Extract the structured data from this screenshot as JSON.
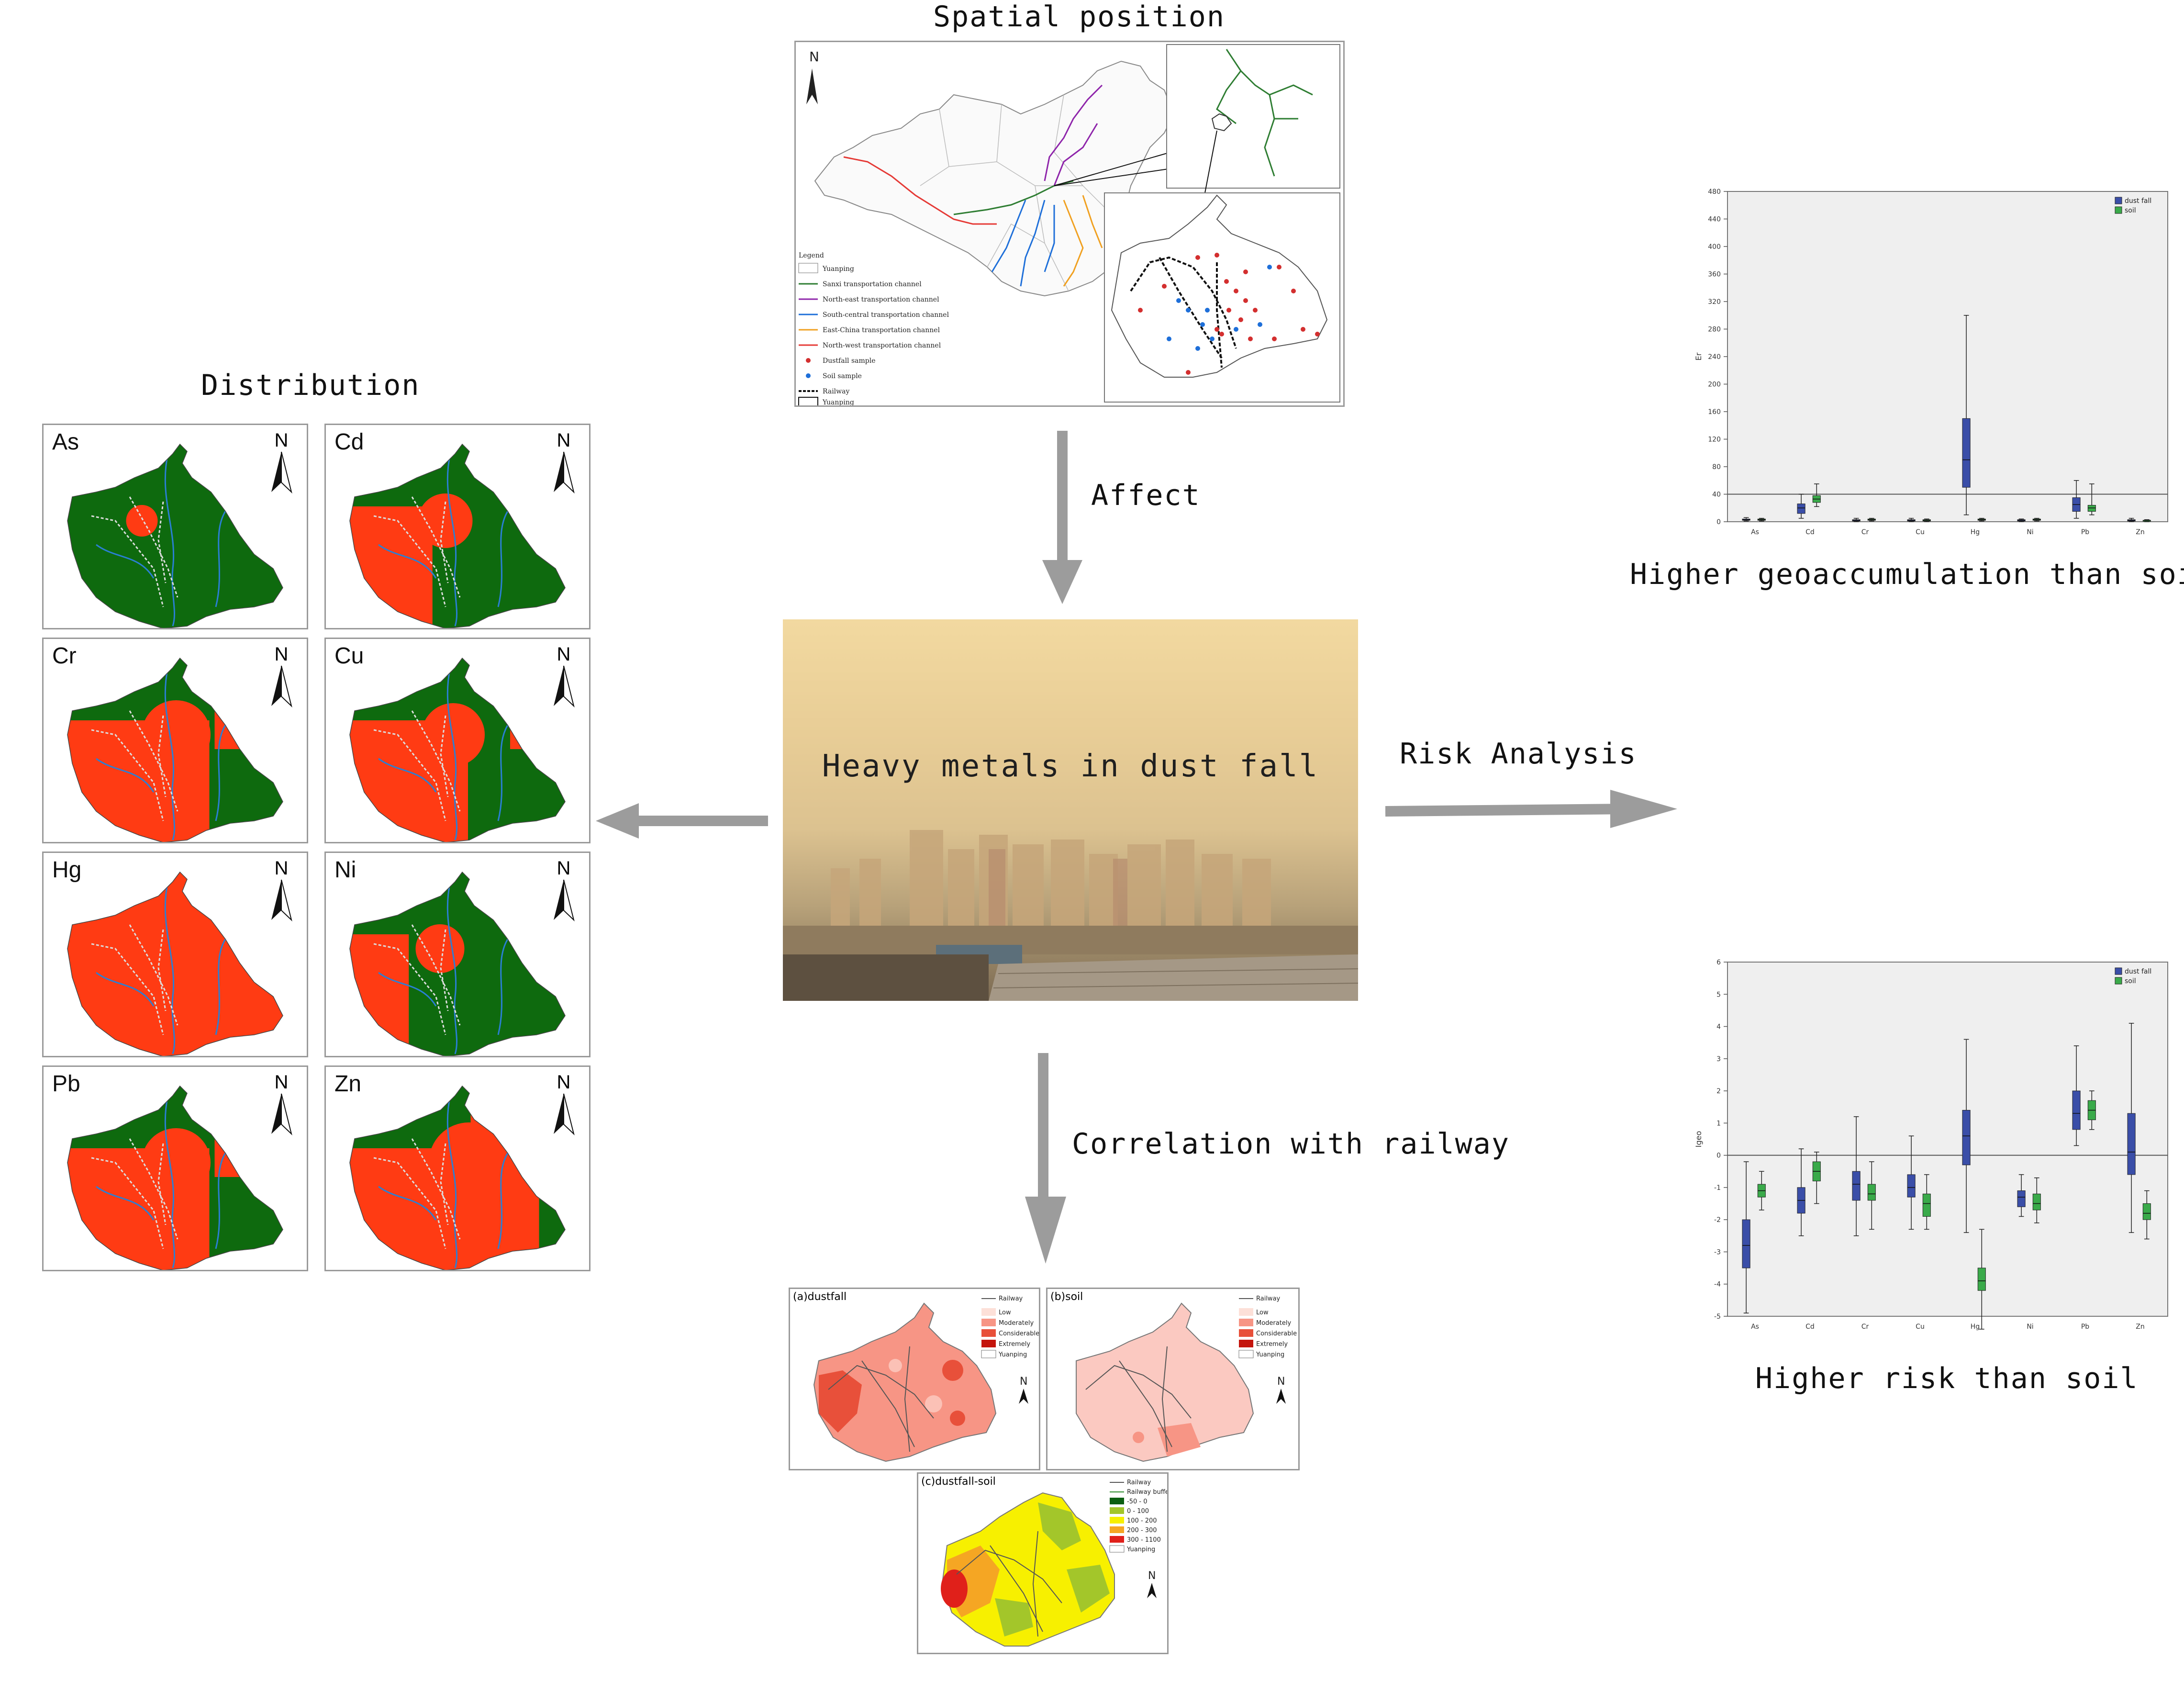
{
  "titles": {
    "spatial": "Spatial position",
    "distribution": "Distribution",
    "affect": "Affect",
    "center": "Heavy metals in dust fall",
    "risk": "Risk Analysis",
    "correlation": "Correlation with railway",
    "geo": "Higher geoaccumulation than soil",
    "riskSoil": "Higher risk than soil"
  },
  "map": {
    "north": "N",
    "legend_title": "Legend",
    "legend": [
      "Yuanping",
      "Sanxi transportation channel",
      "North-east transportation channel",
      "South-central transportation channel",
      "East-China transportation channel",
      "North-west transportation channel",
      "Dustfall sample",
      "Soil sample",
      "Railway",
      "Yuanping"
    ],
    "colors": {
      "sanxi": "#2e7d32",
      "northeast": "#8e24aa",
      "southcentral": "#1e6fd9",
      "eastchina": "#f0a020",
      "northwest": "#e53935"
    }
  },
  "distribution": {
    "north": "N",
    "panels": [
      {
        "label": "As",
        "red": 0.05
      },
      {
        "label": "Cd",
        "red": 0.45
      },
      {
        "label": "Cr",
        "red": 0.7
      },
      {
        "label": "Cu",
        "red": 0.6
      },
      {
        "label": "Hg",
        "red": 1.0
      },
      {
        "label": "Ni",
        "red": 0.35
      },
      {
        "label": "Pb",
        "red": 0.7
      },
      {
        "label": "Zn",
        "red": 0.9
      }
    ],
    "colors": {
      "red": "#ff3b13",
      "green": "#0e6a0e",
      "river": "#2a7fd4"
    }
  },
  "correlation": {
    "panels": [
      {
        "label": "(a)dustfall"
      },
      {
        "label": "(b)soil"
      },
      {
        "label": "(c)dustfall-soil"
      }
    ],
    "legend_ab": [
      "Railway",
      "Low",
      "Moderately",
      "Considerable",
      "Extremely",
      "Yuanping"
    ],
    "legend_c": [
      "Railway",
      "Railway buffer",
      "-50 - 0",
      "0 - 100",
      "100 - 200",
      "200 - 300",
      "300 - 1100",
      "Yuanping"
    ],
    "north": "N"
  },
  "chart_data": [
    {
      "type": "box",
      "categories": [
        "As",
        "Cd",
        "Cr",
        "Cu",
        "Hg",
        "Ni",
        "Pb",
        "Zn"
      ],
      "ylabel": "Er",
      "ylim": [
        0,
        480
      ],
      "yticks": [
        0,
        40,
        80,
        120,
        160,
        200,
        240,
        280,
        320,
        360,
        400,
        440,
        480
      ],
      "reference_line": 40,
      "legend": "top-right",
      "series": [
        {
          "name": "dust fall",
          "color": "#3a4ea8",
          "boxes": [
            [
              1,
              2,
              3,
              4,
              6
            ],
            [
              5,
              12,
              20,
              26,
              40
            ],
            [
              0,
              1,
              2,
              3,
              5
            ],
            [
              0,
              1,
              2,
              3,
              5
            ],
            [
              10,
              50,
              90,
              150,
              300
            ],
            [
              0,
              1,
              2,
              3,
              4
            ],
            [
              5,
              15,
              25,
              35,
              60
            ],
            [
              0,
              1,
              2,
              3,
              5
            ]
          ]
        },
        {
          "name": "soil",
          "color": "#3aaa4a",
          "boxes": [
            [
              1,
              2,
              3,
              4,
              5
            ],
            [
              22,
              28,
              33,
              38,
              55
            ],
            [
              1,
              2,
              3,
              4,
              5
            ],
            [
              0,
              1,
              2,
              3,
              4
            ],
            [
              1,
              2,
              3,
              4,
              5
            ],
            [
              1,
              2,
              3,
              4,
              5
            ],
            [
              10,
              15,
              20,
              24,
              55
            ],
            [
              0,
              1,
              2,
              2,
              3
            ]
          ]
        }
      ]
    },
    {
      "type": "box",
      "categories": [
        "As",
        "Cd",
        "Cr",
        "Cu",
        "Hg",
        "Ni",
        "Pb",
        "Zn"
      ],
      "ylabel": "Igeo",
      "ylim": [
        -5,
        6
      ],
      "yticks": [
        -5,
        -4,
        -3,
        -2,
        -1,
        0,
        1,
        2,
        3,
        4,
        5,
        6
      ],
      "reference_line": 0,
      "legend": "top-right",
      "series": [
        {
          "name": "dust fall",
          "color": "#3a4ea8",
          "boxes": [
            [
              -4.9,
              -3.5,
              -2.8,
              -2.0,
              -0.2
            ],
            [
              -2.5,
              -1.8,
              -1.4,
              -1.0,
              0.2
            ],
            [
              -2.5,
              -1.4,
              -0.9,
              -0.5,
              1.2
            ],
            [
              -2.3,
              -1.3,
              -1.0,
              -0.6,
              0.6
            ],
            [
              -2.4,
              -0.3,
              0.6,
              1.4,
              3.6
            ],
            [
              -1.9,
              -1.6,
              -1.3,
              -1.1,
              -0.6
            ],
            [
              0.3,
              0.8,
              1.3,
              2.0,
              3.4
            ],
            [
              -2.4,
              -0.6,
              0.1,
              1.3,
              4.1
            ]
          ]
        },
        {
          "name": "soil",
          "color": "#3aaa4a",
          "boxes": [
            [
              -1.7,
              -1.3,
              -1.1,
              -0.9,
              -0.5
            ],
            [
              -1.5,
              -0.8,
              -0.5,
              -0.2,
              0.1
            ],
            [
              -2.3,
              -1.4,
              -1.2,
              -0.9,
              -0.2
            ],
            [
              -2.3,
              -1.9,
              -1.5,
              -1.2,
              -0.6
            ],
            [
              -5.4,
              -4.2,
              -3.9,
              -3.5,
              -2.3
            ],
            [
              -2.1,
              -1.7,
              -1.5,
              -1.2,
              -0.7
            ],
            [
              0.8,
              1.1,
              1.4,
              1.7,
              2.0
            ],
            [
              -2.6,
              -2.0,
              -1.8,
              -1.5,
              -1.1
            ]
          ]
        }
      ]
    }
  ]
}
